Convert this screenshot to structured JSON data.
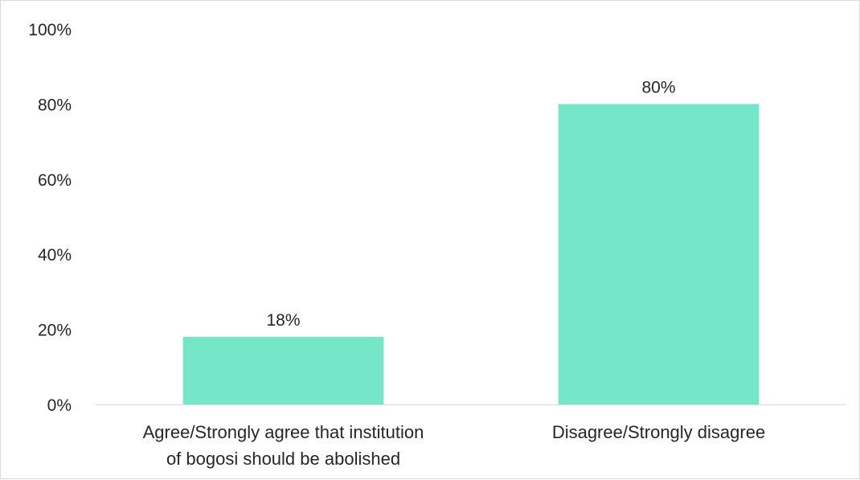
{
  "chart_data": {
    "type": "bar",
    "title": "",
    "xlabel": "",
    "ylabel": "",
    "categories": [
      [
        "Agree/Strongly agree that institution",
        "of bogosi should be abolished"
      ],
      [
        "Disagree/Strongly disagree"
      ]
    ],
    "values": [
      18,
      80
    ],
    "value_labels": [
      "18%",
      "80%"
    ],
    "ylim": [
      0,
      100
    ],
    "yticks": [
      0,
      20,
      40,
      60,
      80,
      100
    ],
    "ytick_labels": [
      "0%",
      "20%",
      "40%",
      "60%",
      "80%",
      "100%"
    ],
    "grid": false,
    "legend": "none",
    "colors": {
      "bar": "#76E6C8",
      "axis": "#d9d9d9",
      "text": "#262626"
    }
  }
}
